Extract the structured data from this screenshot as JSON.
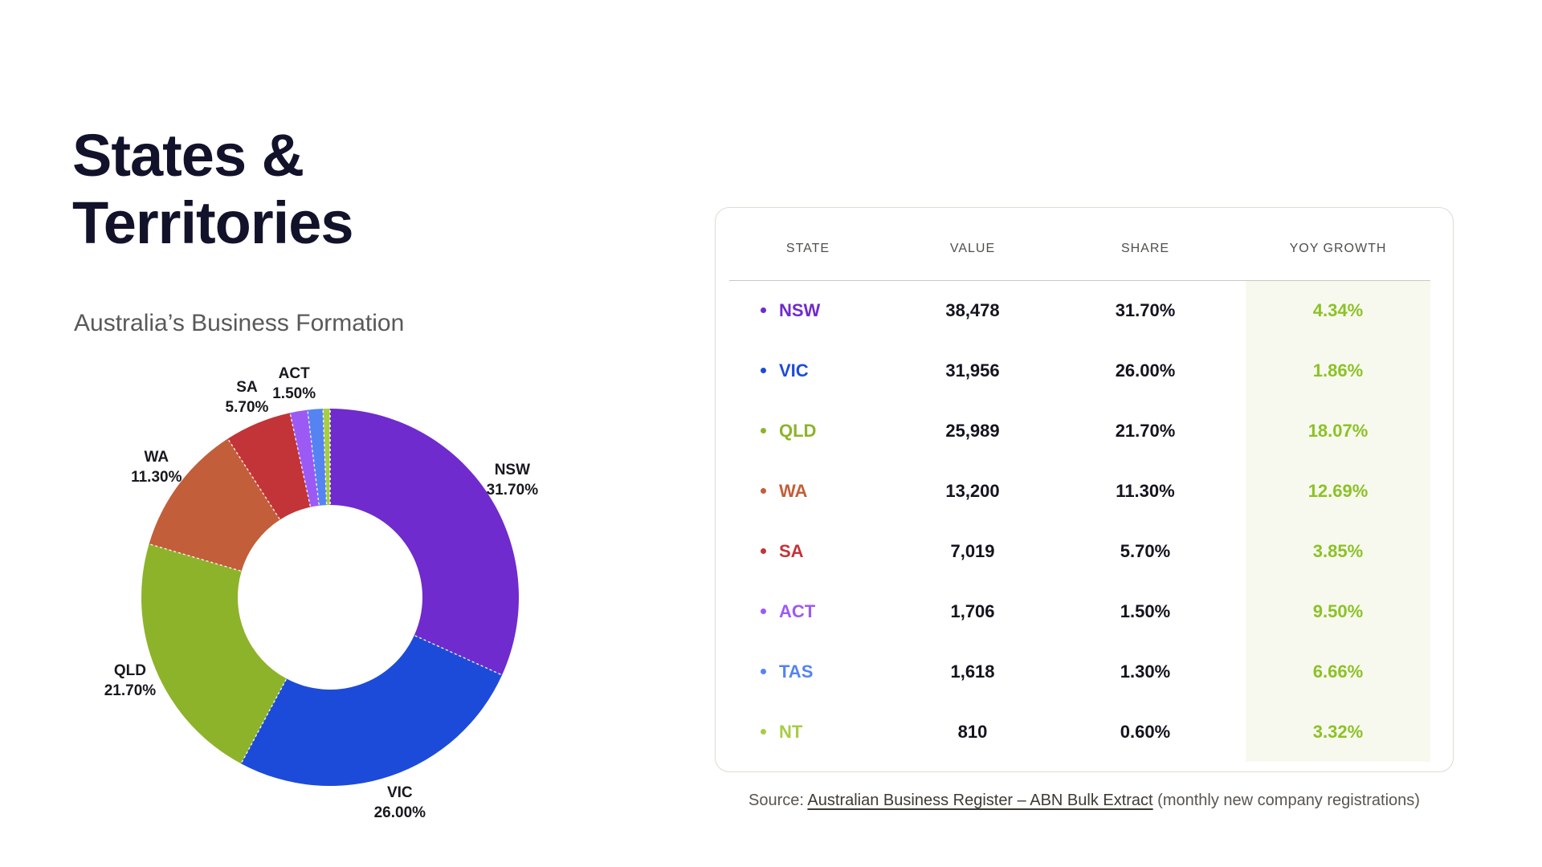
{
  "page": {
    "title_line1": "States &",
    "title_line2": "Territories",
    "subtitle": "Australia’s Business Formation"
  },
  "chart_data": {
    "type": "donut",
    "title": "States & Territories — share of Australia's business formation",
    "inner_radius_ratio": 0.49,
    "start_angle_deg": 0,
    "direction": "clockwise",
    "segments": [
      {
        "state": "NSW",
        "share": 31.7,
        "share_label": "31.70%",
        "color": "#6f2bcd",
        "labeled": true
      },
      {
        "state": "VIC",
        "share": 26.0,
        "share_label": "26.00%",
        "color": "#1d4bd9",
        "labeled": true
      },
      {
        "state": "QLD",
        "share": 21.7,
        "share_label": "21.70%",
        "color": "#8db32a",
        "labeled": true
      },
      {
        "state": "WA",
        "share": 11.3,
        "share_label": "11.30%",
        "color": "#c25e39",
        "labeled": true
      },
      {
        "state": "SA",
        "share": 5.7,
        "share_label": "5.70%",
        "color": "#c23437",
        "labeled": true
      },
      {
        "state": "ACT",
        "share": 1.5,
        "share_label": "1.50%",
        "color": "#9b5af4",
        "labeled": true
      },
      {
        "state": "TAS",
        "share": 1.3,
        "share_label": "1.30%",
        "color": "#5583f2",
        "labeled": false
      },
      {
        "state": "NT",
        "share": 0.6,
        "share_label": "0.60%",
        "color": "#a7cd43",
        "labeled": false
      }
    ]
  },
  "table": {
    "columns": [
      "STATE",
      "VALUE",
      "SHARE",
      "YOY GROWTH"
    ],
    "rows": [
      {
        "state": "NSW",
        "value": "38,478",
        "share": "31.70%",
        "growth": "4.34%",
        "color": "#6f2bcd"
      },
      {
        "state": "VIC",
        "value": "31,956",
        "share": "26.00%",
        "growth": "1.86%",
        "color": "#1d4bd9"
      },
      {
        "state": "QLD",
        "value": "25,989",
        "share": "21.70%",
        "growth": "18.07%",
        "color": "#8db32a"
      },
      {
        "state": "WA",
        "value": "13,200",
        "share": "11.30%",
        "growth": "12.69%",
        "color": "#c25e39"
      },
      {
        "state": "SA",
        "value": "7,019",
        "share": "5.70%",
        "growth": "3.85%",
        "color": "#c23437"
      },
      {
        "state": "ACT",
        "value": "1,706",
        "share": "1.50%",
        "growth": "9.50%",
        "color": "#9b5af4"
      },
      {
        "state": "TAS",
        "value": "1,618",
        "share": "1.30%",
        "growth": "6.66%",
        "color": "#5583f2"
      },
      {
        "state": "NT",
        "value": "810",
        "share": "0.60%",
        "growth": "3.32%",
        "color": "#a7cd43"
      }
    ],
    "growth_color": "#8bc227",
    "highlight_bg": "#f8f9ee"
  },
  "source": {
    "prefix": "Source: ",
    "link": "Australian Business Register – ABN Bulk Extract",
    "suffix": " (monthly new company registrations)"
  }
}
